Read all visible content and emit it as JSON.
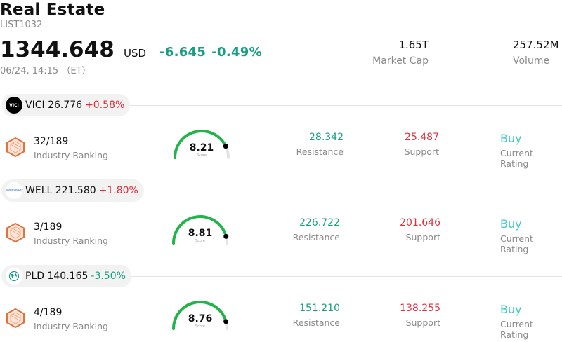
{
  "header": {
    "title": "Real Estate",
    "code": "LIST1032",
    "price": "1344.648",
    "currency": "USD",
    "change": "-6.645",
    "change_pct": "-0.49%",
    "time": "06/24, 14:15 （ET）"
  },
  "stats": {
    "market_cap": {
      "value": "1.65T",
      "label": "Market Cap"
    },
    "volume": {
      "value": "257.52M",
      "label": "Volume"
    }
  },
  "colors": {
    "up": "#e0303b",
    "down": "#1a9e82",
    "rating": "#3fc9c1",
    "gauge": "#22b34a"
  },
  "stocks": [
    {
      "logo_text": "VICI",
      "symbol": "VICI",
      "price": "26.776",
      "pct": "+0.58%",
      "direction": "up",
      "rank": "32/189",
      "rank_label": "Industry Ranking",
      "score": "8.21",
      "score_fraction": 0.82,
      "score_label": "Score",
      "resistance": "28.342",
      "resistance_label": "Resistance",
      "support": "25.487",
      "support_label": "Support",
      "rating": "Buy",
      "rating_label": "Current Rating"
    },
    {
      "logo_text": "Welltower",
      "symbol": "WELL",
      "price": "221.580",
      "pct": "+1.80%",
      "direction": "up",
      "rank": "3/189",
      "rank_label": "Industry Ranking",
      "score": "8.81",
      "score_fraction": 0.88,
      "score_label": "Score",
      "resistance": "226.722",
      "resistance_label": "Resistance",
      "support": "201.646",
      "support_label": "Support",
      "rating": "Buy",
      "rating_label": "Current Rating"
    },
    {
      "logo_text": "",
      "symbol": "PLD",
      "price": "140.165",
      "pct": "-3.50%",
      "direction": "down",
      "rank": "4/189",
      "rank_label": "Industry Ranking",
      "score": "8.76",
      "score_fraction": 0.876,
      "score_label": "Score",
      "resistance": "151.210",
      "resistance_label": "Resistance",
      "support": "138.255",
      "support_label": "Support",
      "rating": "Buy",
      "rating_label": "Current Rating"
    }
  ]
}
